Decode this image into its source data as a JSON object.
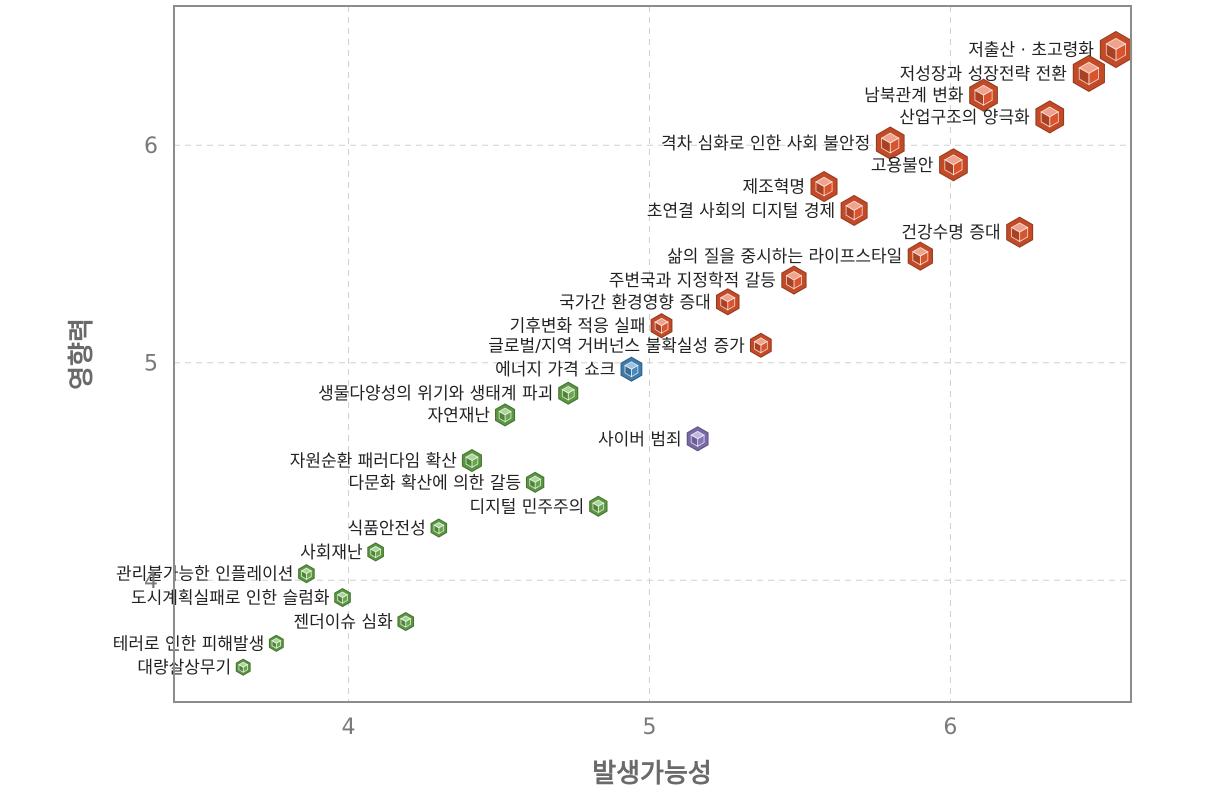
{
  "chart_data": {
    "type": "scatter",
    "title": "",
    "xlabel": "발생가능성",
    "ylabel": "영향력",
    "xlim": [
      3.42,
      6.6
    ],
    "ylim": [
      3.44,
      6.64
    ],
    "xticks": [
      4,
      5,
      6
    ],
    "yticks": [
      4,
      5,
      6
    ],
    "grid": true,
    "colors": {
      "red": "#e4572e",
      "green": "#6ab04c",
      "blue": "#4a90c8",
      "purple": "#8e7cc3"
    },
    "points": [
      {
        "label": "저출산 · 초고령화",
        "x": 6.55,
        "y": 6.44,
        "color": "red",
        "size": 18
      },
      {
        "label": "저성장과 성장전략 전환",
        "x": 6.46,
        "y": 6.33,
        "color": "red",
        "size": 18
      },
      {
        "label": "남북관계 변화",
        "x": 6.11,
        "y": 6.23,
        "color": "red",
        "size": 16
      },
      {
        "label": "산업구조의 양극화",
        "x": 6.33,
        "y": 6.13,
        "color": "red",
        "size": 16
      },
      {
        "label": "격차 심화로 인한 사회 불안정",
        "x": 5.8,
        "y": 6.01,
        "color": "red",
        "size": 16
      },
      {
        "label": "고용불안",
        "x": 6.01,
        "y": 5.91,
        "color": "red",
        "size": 16
      },
      {
        "label": "제조혁명",
        "x": 5.58,
        "y": 5.81,
        "color": "red",
        "size": 15
      },
      {
        "label": "초연결 사회의 디지털 경제",
        "x": 5.68,
        "y": 5.7,
        "color": "red",
        "size": 15
      },
      {
        "label": "건강수명 증대",
        "x": 6.23,
        "y": 5.6,
        "color": "red",
        "size": 15
      },
      {
        "label": "삶의 질을 중시하는 라이프스타일",
        "x": 5.9,
        "y": 5.49,
        "color": "red",
        "size": 14
      },
      {
        "label": "주변국과 지정학적 갈등",
        "x": 5.48,
        "y": 5.38,
        "color": "red",
        "size": 14
      },
      {
        "label": "국가간 환경영향 증대",
        "x": 5.26,
        "y": 5.28,
        "color": "red",
        "size": 13
      },
      {
        "label": "기후변화 적응 실패",
        "x": 5.04,
        "y": 5.17,
        "color": "red",
        "size": 12
      },
      {
        "label": "글로벌/지역 거버넌스 불확실성 증가",
        "x": 5.37,
        "y": 5.08,
        "color": "red",
        "size": 12
      },
      {
        "label": "에너지 가격 쇼크",
        "x": 4.94,
        "y": 4.97,
        "color": "blue",
        "size": 12
      },
      {
        "label": "생물다양성의 위기와 생태계 파괴",
        "x": 4.73,
        "y": 4.86,
        "color": "green",
        "size": 11
      },
      {
        "label": "자연재난",
        "x": 4.52,
        "y": 4.76,
        "color": "green",
        "size": 11
      },
      {
        "label": "사이버 범죄",
        "x": 5.16,
        "y": 4.65,
        "color": "purple",
        "size": 12
      },
      {
        "label": "자원순환 패러다임 확산",
        "x": 4.41,
        "y": 4.55,
        "color": "green",
        "size": 11
      },
      {
        "label": "다문화 확산에 의한 갈등",
        "x": 4.62,
        "y": 4.45,
        "color": "green",
        "size": 10
      },
      {
        "label": "디지털 민주주의",
        "x": 4.83,
        "y": 4.34,
        "color": "green",
        "size": 10
      },
      {
        "label": "식품안전성",
        "x": 4.3,
        "y": 4.24,
        "color": "green",
        "size": 9
      },
      {
        "label": "사회재난",
        "x": 4.09,
        "y": 4.13,
        "color": "green",
        "size": 9
      },
      {
        "label": "관리불가능한 인플레이션",
        "x": 3.86,
        "y": 4.03,
        "color": "green",
        "size": 9
      },
      {
        "label": "도시계획실패로 인한 슬럼화",
        "x": 3.98,
        "y": 3.92,
        "color": "green",
        "size": 9
      },
      {
        "label": "젠더이슈 심화",
        "x": 4.19,
        "y": 3.81,
        "color": "green",
        "size": 9
      },
      {
        "label": "테러로 인한 피해발생",
        "x": 3.76,
        "y": 3.71,
        "color": "green",
        "size": 8
      },
      {
        "label": "대량살상무기",
        "x": 3.65,
        "y": 3.6,
        "color": "green",
        "size": 8
      }
    ]
  }
}
